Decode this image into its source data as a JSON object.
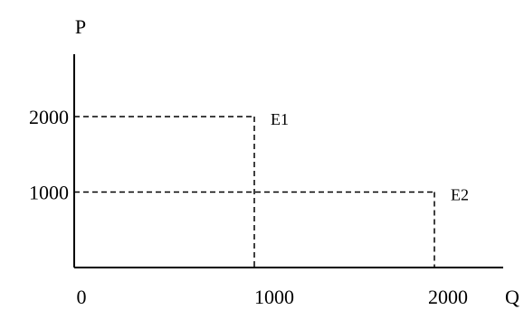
{
  "chart_data": {
    "type": "scatter",
    "title": "",
    "xlabel": "Q",
    "ylabel": "P",
    "xlim": [
      0,
      2000
    ],
    "ylim": [
      0,
      2000
    ],
    "x_ticks": [
      {
        "value": 0,
        "label": "0"
      },
      {
        "value": 1000,
        "label": "1000"
      },
      {
        "value": 2000,
        "label": "2000"
      }
    ],
    "y_ticks": [
      {
        "value": 1000,
        "label": "1000"
      },
      {
        "value": 2000,
        "label": "2000"
      }
    ],
    "points": [
      {
        "label": "E1",
        "x": 1000,
        "y": 2000
      },
      {
        "label": "E2",
        "x": 2000,
        "y": 1000
      }
    ],
    "grid": false,
    "guide_lines": "dashed",
    "colors": {
      "line": "#000000",
      "background": "#ffffff"
    }
  }
}
